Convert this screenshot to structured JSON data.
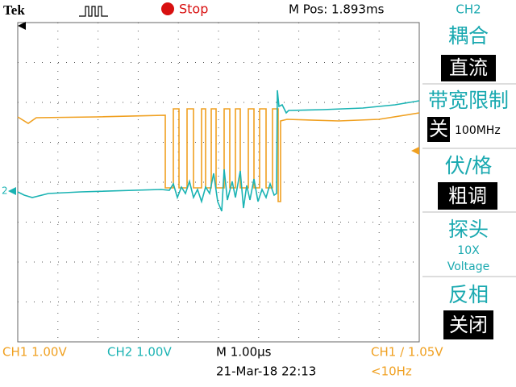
{
  "header": {
    "brand": "Tek",
    "status": "Stop",
    "position": "M Pos: 1.893ms",
    "channel": "CH2"
  },
  "markers": {
    "ch2": "2"
  },
  "menu": [
    {
      "label": "耦合",
      "value": "直流"
    },
    {
      "label": "带宽限制",
      "value": "关",
      "extra": "100MHz"
    },
    {
      "label": "伏/格",
      "value": "粗调"
    },
    {
      "label": "探头",
      "value": "10X",
      "extra": "Voltage"
    },
    {
      "label": "反相",
      "value": "关闭"
    }
  ],
  "footer": {
    "ch1": "CH1 1.00V",
    "ch2": "CH2 1.00V",
    "timebase": "M 1.00µs",
    "trigger": "CH1 ∕ 1.05V",
    "date": "21-Mar-18 22:13",
    "frequency": "<10Hz"
  }
}
